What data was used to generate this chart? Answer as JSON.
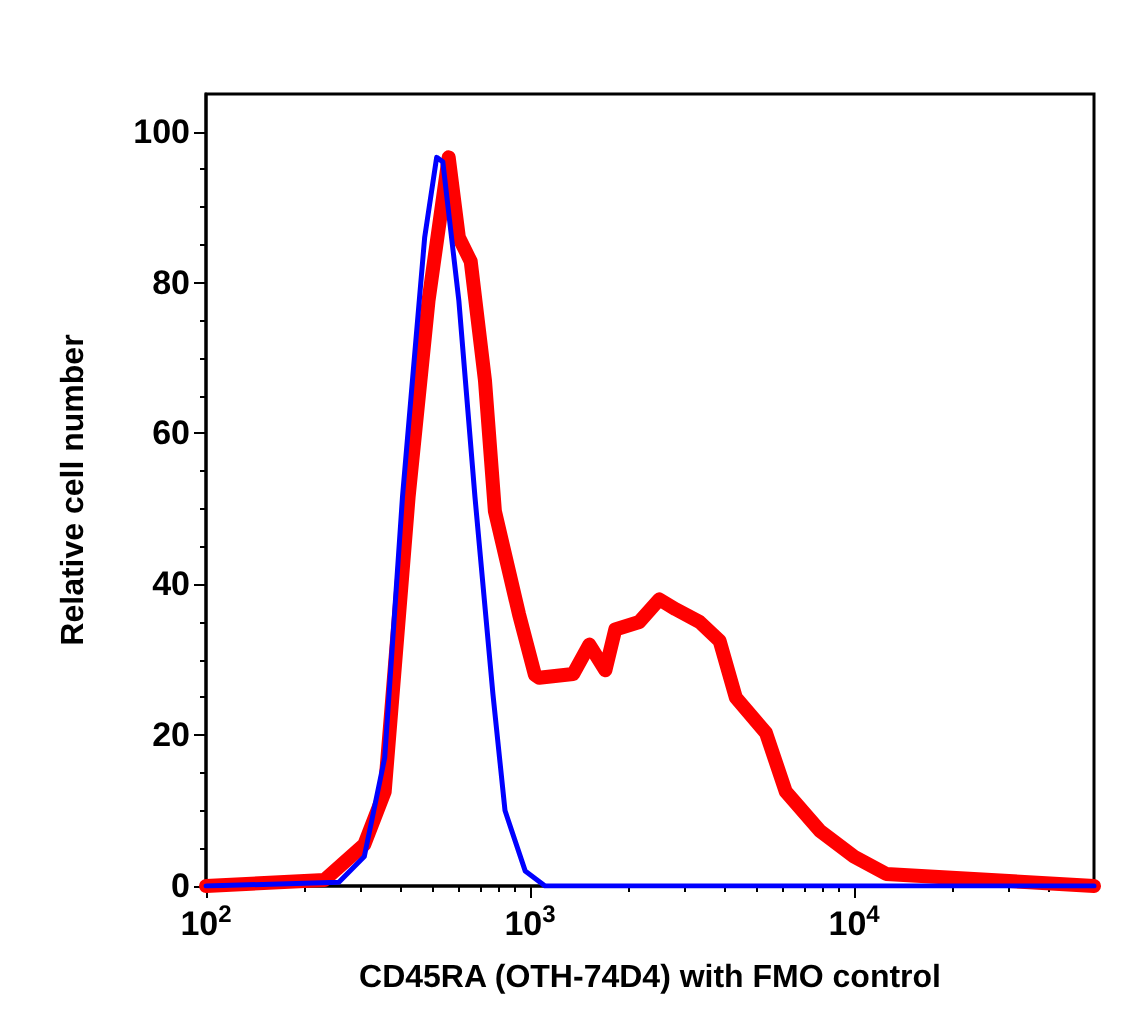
{
  "chart_data": {
    "type": "line",
    "xlabel": "CD45RA (OTH-74D4) with FMO control",
    "ylabel": "Relative cell number",
    "log": "x",
    "xlim": [
      100,
      55000
    ],
    "xticks": [
      {
        "value": 100,
        "label": "10$^{2}$"
      },
      {
        "value": 1000,
        "label": "10$^{3}$"
      },
      {
        "value": 10000,
        "label": "10$^{4}$"
      }
    ],
    "ylim": [
      0,
      105
    ],
    "yticks": [
      0,
      20,
      40,
      60,
      80,
      100
    ],
    "grid": false,
    "marker": "none",
    "line_style": "solid",
    "series": [
      {
        "color": "#0000ff",
        "x": [
          100,
          257,
          308,
          356,
          404,
          473,
          515,
          538,
          603,
          676,
          768,
          837,
          966,
          1113,
          55000
        ],
        "values": [
          0,
          0.5,
          3.9,
          17,
          51.6,
          86,
          96.6,
          96,
          77.6,
          51.6,
          25.5,
          10,
          2,
          0,
          0
        ]
      },
      {
        "color": "#ff0000",
        "x": [
          100,
          232,
          308,
          356,
          422,
          486,
          561,
          603,
          656,
          726,
          779,
          925,
          1035,
          1067,
          1358,
          1524,
          1708,
          1832,
          2172,
          2506,
          2812,
          3337,
          3846,
          4314,
          5346,
          6156,
          7847,
          10000,
          12560,
          55000
        ],
        "values": [
          0,
          0.8,
          5.5,
          12.5,
          51.6,
          77.6,
          96.6,
          86,
          82.8,
          67,
          49.7,
          36,
          28,
          27.6,
          28.1,
          32,
          28.6,
          34,
          35,
          38,
          36.7,
          35,
          32.5,
          25,
          20.3,
          12.5,
          7.3,
          3.9,
          1.6,
          0
        ]
      }
    ]
  }
}
